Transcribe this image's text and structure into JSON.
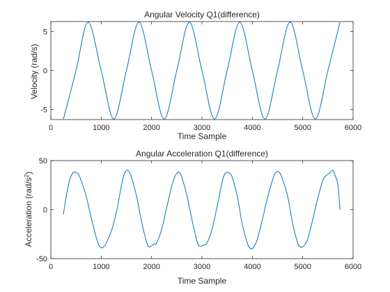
{
  "chart_data": [
    {
      "type": "line",
      "title": "Angular Velocity Q1(difference)",
      "xlabel": "Time Sample",
      "ylabel": "Velocity (rad/s)",
      "xlim": [
        0,
        6000
      ],
      "ylim": [
        -6.28,
        6.28
      ],
      "xticks": [
        0,
        1000,
        2000,
        3000,
        4000,
        5000,
        6000
      ],
      "yticks": [
        -5,
        0,
        5
      ],
      "xtick_labels": [
        "0",
        "1000",
        "2000",
        "3000",
        "4000",
        "5000",
        "6000"
      ],
      "ytick_labels": [
        "-5",
        "0",
        "5"
      ],
      "grid": false,
      "color": "#0072BD",
      "series": [
        {
          "x": [
            250,
            500,
            740,
            1000,
            1250,
            1500,
            1750,
            2000,
            2250,
            2500,
            2750,
            3000,
            3250,
            3500,
            3750,
            4000,
            4250,
            4500,
            4750,
            5000,
            5250,
            5500,
            5740
          ],
          "values": [
            -6.2,
            0.0,
            6.2,
            0.0,
            -6.2,
            0.0,
            6.2,
            0.0,
            -6.2,
            0.0,
            6.2,
            0.0,
            -6.2,
            0.0,
            6.2,
            0.0,
            -6.2,
            0.0,
            6.2,
            0.0,
            -6.2,
            0.0,
            6.2
          ]
        }
      ]
    },
    {
      "type": "line",
      "title": "Angular Acceleration Q1(difference)",
      "xlabel": "Time Sample",
      "ylabel": "Acceleration (rad/s²)",
      "xlim": [
        0,
        6000
      ],
      "ylim": [
        -50,
        50
      ],
      "xticks": [
        0,
        1000,
        2000,
        3000,
        4000,
        5000,
        6000
      ],
      "yticks": [
        -50,
        0,
        50
      ],
      "xtick_labels": [
        "0",
        "1000",
        "2000",
        "3000",
        "4000",
        "5000",
        "6000"
      ],
      "ytick_labels": [
        "-50",
        "0",
        "50"
      ],
      "grid": false,
      "color": "#0072BD",
      "series": [
        {
          "x": [
            250,
            300,
            350,
            400,
            450,
            500,
            550,
            600,
            700,
            800,
            900,
            950,
            1000,
            1050,
            1100,
            1200,
            1300,
            1400,
            1450,
            1500,
            1550,
            1600,
            1700,
            1800,
            1900,
            1950,
            2000,
            2050,
            2100,
            2200,
            2300,
            2400,
            2450,
            2500,
            2550,
            2600,
            2700,
            2800,
            2900,
            2950,
            3000,
            3050,
            3100,
            3200,
            3300,
            3400,
            3450,
            3500,
            3550,
            3600,
            3700,
            3800,
            3900,
            3950,
            4000,
            4050,
            4100,
            4200,
            4300,
            4400,
            4450,
            4500,
            4550,
            4600,
            4700,
            4800,
            4900,
            4950,
            5000,
            5050,
            5100,
            5200,
            5300,
            5400,
            5450,
            5500,
            5550,
            5600,
            5650,
            5700,
            5740
          ],
          "values": [
            -5,
            12,
            25,
            34,
            38,
            38,
            36,
            30,
            14,
            -8,
            -28,
            -36,
            -39,
            -38,
            -34,
            -22,
            -3,
            24,
            35,
            40,
            39,
            33,
            14,
            -12,
            -33,
            -38,
            -37,
            -35,
            -34,
            -20,
            2,
            24,
            32,
            37,
            38,
            33,
            15,
            -10,
            -32,
            -37,
            -37,
            -36,
            -34,
            -20,
            3,
            28,
            36,
            38,
            37,
            33,
            14,
            -15,
            -34,
            -39,
            -40,
            -36,
            -30,
            -10,
            12,
            30,
            37,
            39,
            37,
            31,
            14,
            -14,
            -34,
            -38,
            -38,
            -35,
            -30,
            -10,
            12,
            30,
            34,
            36,
            38,
            40,
            34,
            25,
            0
          ]
        }
      ]
    }
  ]
}
